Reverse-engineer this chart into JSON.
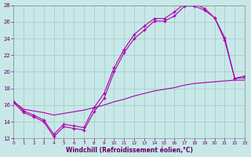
{
  "bg_color": "#c8e8e8",
  "grid_color": "#a0c8c8",
  "line_color": "#aa00aa",
  "xlim": [
    0,
    23
  ],
  "ylim": [
    12,
    28
  ],
  "xtick_labels": [
    "0",
    "1",
    "2",
    "3",
    "4",
    "5",
    "6",
    "7",
    "8",
    "9",
    "10",
    "11",
    "12",
    "13",
    "14",
    "15",
    "16",
    "17",
    "18",
    "19",
    "20",
    "21",
    "22",
    "23"
  ],
  "ytick_values": [
    12,
    14,
    16,
    18,
    20,
    22,
    24,
    26,
    28
  ],
  "xlabel": "Windchill (Refroidissement éolien,°C)",
  "line_a_y": [
    16.3,
    15.1,
    14.6,
    14.0,
    12.2,
    13.4,
    13.2,
    13.0,
    15.2,
    16.8,
    20.0,
    22.3,
    24.0,
    25.0,
    26.1,
    26.1,
    26.7,
    27.9,
    27.9,
    27.4,
    26.5,
    23.8,
    19.2,
    19.3
  ],
  "line_b_y": [
    16.5,
    15.3,
    14.8,
    14.2,
    12.5,
    13.7,
    13.5,
    13.3,
    15.7,
    17.4,
    20.5,
    22.7,
    24.5,
    25.5,
    26.4,
    26.4,
    27.2,
    28.2,
    28.2,
    27.6,
    26.5,
    24.1,
    19.2,
    19.5
  ],
  "line_c_y": [
    16.4,
    15.5,
    15.3,
    15.1,
    14.8,
    15.0,
    15.2,
    15.4,
    15.7,
    16.0,
    16.4,
    16.7,
    17.1,
    17.4,
    17.7,
    17.9,
    18.1,
    18.4,
    18.6,
    18.7,
    18.8,
    18.9,
    19.0,
    19.0
  ]
}
